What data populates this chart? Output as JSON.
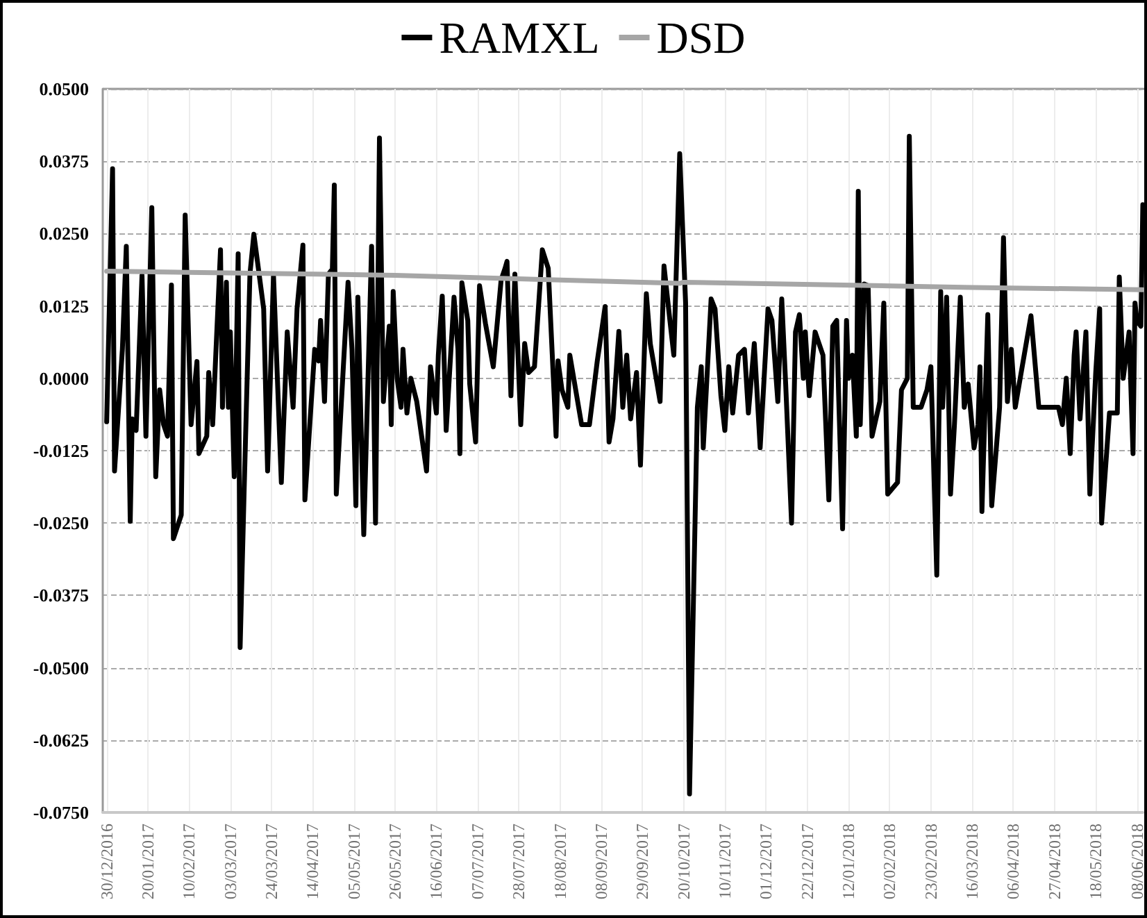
{
  "chart_data": {
    "type": "line",
    "xlim": [
      "2016-12-28",
      "2018-06-11"
    ],
    "xticks": [
      {
        "value": "2016-12-30",
        "label": "30/12/2016"
      },
      {
        "value": "2017-01-20",
        "label": "20/01/2017"
      },
      {
        "value": "2017-02-10",
        "label": "10/02/2017"
      },
      {
        "value": "2017-03-03",
        "label": "03/03/2017"
      },
      {
        "value": "2017-03-24",
        "label": "24/03/2017"
      },
      {
        "value": "2017-04-14",
        "label": "14/04/2017"
      },
      {
        "value": "2017-05-05",
        "label": "05/05/2017"
      },
      {
        "value": "2017-05-26",
        "label": "26/05/2017"
      },
      {
        "value": "2017-06-16",
        "label": "16/06/2017"
      },
      {
        "value": "2017-07-07",
        "label": "07/07/2017"
      },
      {
        "value": "2017-07-28",
        "label": "28/07/2017"
      },
      {
        "value": "2017-08-18",
        "label": "18/08/2017"
      },
      {
        "value": "2017-09-08",
        "label": "08/09/2017"
      },
      {
        "value": "2017-09-29",
        "label": "29/09/2017"
      },
      {
        "value": "2017-10-20",
        "label": "20/10/2017"
      },
      {
        "value": "2017-11-10",
        "label": "10/11/2017"
      },
      {
        "value": "2017-12-01",
        "label": "01/12/2017"
      },
      {
        "value": "2017-12-22",
        "label": "22/12/2017"
      },
      {
        "value": "2018-01-12",
        "label": "12/01/2018"
      },
      {
        "value": "2018-02-02",
        "label": "02/02/2018"
      },
      {
        "value": "2018-02-23",
        "label": "23/02/2018"
      },
      {
        "value": "2018-03-16",
        "label": "16/03/2018"
      },
      {
        "value": "2018-04-06",
        "label": "06/04/2018"
      },
      {
        "value": "2018-04-27",
        "label": "27/04/2018"
      },
      {
        "value": "2018-05-18",
        "label": "18/05/2018"
      },
      {
        "value": "2018-06-08",
        "label": "08/06/2018"
      }
    ],
    "ylim": [
      -0.075,
      0.05
    ],
    "yticks": [
      {
        "value": -0.075,
        "label": "-0.0750"
      },
      {
        "value": -0.0625,
        "label": "-0.0625"
      },
      {
        "value": -0.05,
        "label": "-0.0500"
      },
      {
        "value": -0.0375,
        "label": "-0.0375"
      },
      {
        "value": -0.025,
        "label": "-0.0250"
      },
      {
        "value": -0.0125,
        "label": "-0.0125"
      },
      {
        "value": 0,
        "label": "0.0000"
      },
      {
        "value": 0.0125,
        "label": "0.0125"
      },
      {
        "value": 0.025,
        "label": "0.0250"
      },
      {
        "value": 0.0375,
        "label": "0.0375"
      },
      {
        "value": 0.05,
        "label": "0.0500"
      }
    ],
    "grid": true,
    "legend": "top",
    "marker": "none",
    "line_style": "solid",
    "series": [
      {
        "name": "RAMXL",
        "color": "#000000",
        "x": [
          "2016-12-30",
          "2017-01-02",
          "2017-01-03",
          "2017-01-07",
          "2017-01-09",
          "2017-01-11",
          "2017-01-12",
          "2017-01-14",
          "2017-01-17",
          "2017-01-19",
          "2017-01-22",
          "2017-01-24",
          "2017-01-26",
          "2017-01-28",
          "2017-01-30",
          "2017-02-01",
          "2017-02-02",
          "2017-02-06",
          "2017-02-08",
          "2017-02-11",
          "2017-02-14",
          "2017-02-15",
          "2017-02-19",
          "2017-02-20",
          "2017-02-22",
          "2017-02-26",
          "2017-02-27",
          "2017-03-01",
          "2017-03-02",
          "2017-03-03",
          "2017-03-05",
          "2017-03-07",
          "2017-03-08",
          "2017-03-10",
          "2017-03-13",
          "2017-03-15",
          "2017-03-20",
          "2017-03-22",
          "2017-03-25",
          "2017-03-29",
          "2017-04-01",
          "2017-04-04",
          "2017-04-06",
          "2017-04-09",
          "2017-04-10",
          "2017-04-15",
          "2017-04-17",
          "2017-04-18",
          "2017-04-20",
          "2017-04-22",
          "2017-04-24",
          "2017-04-25",
          "2017-04-26",
          "2017-05-02",
          "2017-05-04",
          "2017-05-06",
          "2017-05-07",
          "2017-05-10",
          "2017-05-14",
          "2017-05-16",
          "2017-05-18",
          "2017-05-20",
          "2017-05-23",
          "2017-05-24",
          "2017-05-25",
          "2017-05-27",
          "2017-05-29",
          "2017-05-30",
          "2017-06-01",
          "2017-06-03",
          "2017-06-06",
          "2017-06-11",
          "2017-06-13",
          "2017-06-16",
          "2017-06-17",
          "2017-06-19",
          "2017-06-21",
          "2017-06-25",
          "2017-06-27",
          "2017-06-28",
          "2017-06-29",
          "2017-07-02",
          "2017-07-03",
          "2017-07-06",
          "2017-07-08",
          "2017-07-11",
          "2017-07-15",
          "2017-07-19",
          "2017-07-21",
          "2017-07-22",
          "2017-07-24",
          "2017-07-26",
          "2017-07-29",
          "2017-07-31",
          "2017-08-02",
          "2017-08-05",
          "2017-08-09",
          "2017-08-12",
          "2017-08-16",
          "2017-08-17",
          "2017-08-19",
          "2017-08-22",
          "2017-08-23",
          "2017-08-29",
          "2017-09-02",
          "2017-09-06",
          "2017-09-10",
          "2017-09-12",
          "2017-09-14",
          "2017-09-17",
          "2017-09-19",
          "2017-09-21",
          "2017-09-23",
          "2017-09-26",
          "2017-09-28",
          "2017-10-01",
          "2017-10-03",
          "2017-10-08",
          "2017-10-10",
          "2017-10-13",
          "2017-10-15",
          "2017-10-18",
          "2017-10-21",
          "2017-10-23",
          "2017-10-27",
          "2017-10-29",
          "2017-10-30",
          "2017-11-03",
          "2017-11-05",
          "2017-11-08",
          "2017-11-10",
          "2017-11-12",
          "2017-11-14",
          "2017-11-17",
          "2017-11-20",
          "2017-11-22",
          "2017-11-25",
          "2017-11-28",
          "2017-12-02",
          "2017-12-04",
          "2017-12-07",
          "2017-12-09",
          "2017-12-11",
          "2017-12-14",
          "2017-12-16",
          "2017-12-18",
          "2017-12-20",
          "2017-12-21",
          "2017-12-23",
          "2017-12-26",
          "2017-12-28",
          "2017-12-30",
          "2018-01-02",
          "2018-01-04",
          "2018-01-06",
          "2018-01-07",
          "2018-01-09",
          "2018-01-11",
          "2018-01-12",
          "2018-01-14",
          "2018-01-16",
          "2018-01-17",
          "2018-01-18",
          "2018-01-20",
          "2018-01-22",
          "2018-01-24",
          "2018-01-28",
          "2018-01-30",
          "2018-02-01",
          "2018-02-06",
          "2018-02-08",
          "2018-02-11",
          "2018-02-12",
          "2018-02-14",
          "2018-02-18",
          "2018-02-21",
          "2018-02-23",
          "2018-02-26",
          "2018-02-28",
          "2018-03-01",
          "2018-03-03",
          "2018-03-05",
          "2018-03-07",
          "2018-03-10",
          "2018-03-12",
          "2018-03-14",
          "2018-03-17",
          "2018-03-19",
          "2018-03-20",
          "2018-03-21",
          "2018-03-24",
          "2018-03-26",
          "2018-03-30",
          "2018-04-01",
          "2018-04-03",
          "2018-04-05",
          "2018-04-07",
          "2018-04-09",
          "2018-04-15",
          "2018-04-19",
          "2018-04-24",
          "2018-04-29",
          "2018-05-01",
          "2018-05-03",
          "2018-05-05",
          "2018-05-07",
          "2018-05-08",
          "2018-05-10",
          "2018-05-13",
          "2018-05-15",
          "2018-05-18",
          "2018-05-20",
          "2018-05-21",
          "2018-05-25",
          "2018-05-29",
          "2018-05-30",
          "2018-06-01",
          "2018-06-04",
          "2018-06-06",
          "2018-06-07",
          "2018-06-08",
          "2018-06-10",
          "2018-06-11"
        ],
        "values": [
          -0.0075,
          0.0362,
          -0.016,
          0.005,
          0.0228,
          -0.0247,
          -0.007,
          -0.009,
          0.0178,
          -0.01,
          0.0295,
          -0.017,
          -0.002,
          -0.008,
          -0.01,
          0.0161,
          -0.0277,
          -0.0236,
          0.0282,
          -0.008,
          0.0029,
          -0.013,
          -0.01,
          0.001,
          -0.008,
          0.0222,
          -0.005,
          0.0166,
          -0.005,
          0.008,
          -0.017,
          0.0215,
          -0.0465,
          -0.02,
          0.018,
          0.0249,
          0.012,
          -0.016,
          0.0178,
          -0.018,
          0.008,
          -0.005,
          0.012,
          0.023,
          -0.021,
          0.005,
          0.003,
          0.01,
          -0.004,
          0.018,
          0.0189,
          0.0334,
          -0.02,
          0.0166,
          0.005,
          -0.022,
          0.014,
          -0.027,
          0.0228,
          -0.025,
          0.0415,
          -0.004,
          0.009,
          -0.008,
          0.015,
          0,
          -0.005,
          0.005,
          -0.006,
          0,
          -0.004,
          -0.016,
          0.002,
          -0.006,
          0.004,
          0.0142,
          -0.009,
          0.014,
          0.005,
          -0.013,
          0.0165,
          0.01,
          -0.001,
          -0.011,
          0.016,
          0.0095,
          0.002,
          0.017,
          0.019,
          0.0202,
          -0.003,
          0.018,
          -0.008,
          0.006,
          0.001,
          0.002,
          0.0222,
          0.019,
          -0.01,
          0.003,
          -0.002,
          -0.005,
          0.004,
          -0.008,
          -0.008,
          0.003,
          0.0124,
          -0.011,
          -0.007,
          0.0081,
          -0.005,
          0.004,
          -0.007,
          0.001,
          -0.015,
          0.0146,
          0.006,
          -0.004,
          0.0194,
          0.01,
          0.004,
          0.0388,
          0.013,
          -0.0718,
          -0.005,
          0.002,
          -0.012,
          0.0137,
          0.012,
          -0.003,
          -0.009,
          0.002,
          -0.006,
          0.004,
          0.005,
          -0.006,
          0.006,
          -0.012,
          0.012,
          0.01,
          -0.004,
          0.0137,
          -0.001,
          -0.025,
          0.008,
          0.011,
          0,
          0.008,
          -0.003,
          0.008,
          0.006,
          0.004,
          -0.021,
          0.009,
          0.01,
          -0.003,
          -0.026,
          0.01,
          0,
          0.004,
          -0.01,
          0.0323,
          -0.008,
          0.0163,
          0.016,
          -0.01,
          -0.004,
          0.013,
          -0.02,
          -0.018,
          -0.002,
          0,
          0.0418,
          -0.005,
          -0.005,
          -0.002,
          0.002,
          -0.034,
          0.015,
          -0.005,
          0.014,
          -0.02,
          -0.008,
          0.014,
          -0.005,
          -0.001,
          -0.012,
          -0.008,
          0.002,
          -0.023,
          0.011,
          -0.022,
          -0.005,
          0.0243,
          -0.004,
          0.005,
          -0.005,
          -0.001,
          0.0108,
          -0.005,
          -0.005,
          -0.005,
          -0.008,
          0,
          -0.013,
          0.004,
          0.008,
          -0.007,
          0.008,
          -0.02,
          0.001,
          0.012,
          -0.025,
          -0.006,
          -0.006,
          0.0175,
          0,
          0.008,
          -0.013,
          0.013,
          0.01,
          0.009,
          0.03
        ]
      },
      {
        "name": "DSD",
        "color": "#a6a6a6",
        "x": [
          "2016-12-30",
          "2017-05-26",
          "2017-10-18",
          "2017-10-20",
          "2018-03-16",
          "2018-06-11"
        ],
        "values": [
          0.0185,
          0.0178,
          0.0164,
          0.0166,
          0.0157,
          0.0153
        ]
      }
    ]
  }
}
